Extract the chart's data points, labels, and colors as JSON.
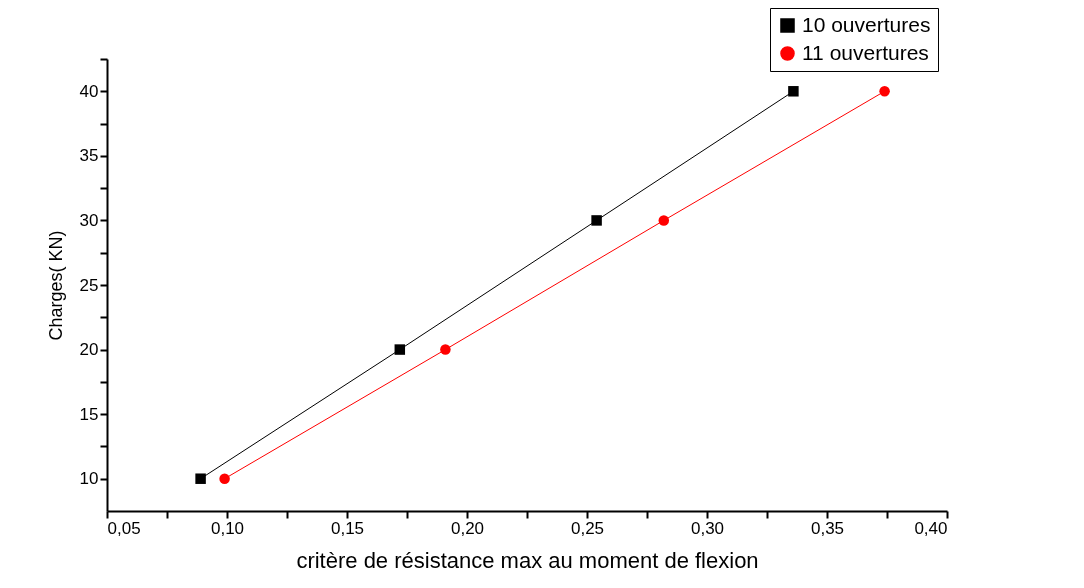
{
  "chart_data": {
    "type": "line",
    "xlabel": "critère de résistance max au moment de flexion",
    "ylabel": "Charges( KN)",
    "series": [
      {
        "name": "10 ouvertures",
        "color": "#000000",
        "marker": "square",
        "x": [
          0.089,
          0.172,
          0.254,
          0.336
        ],
        "values": [
          10,
          20,
          30,
          40
        ]
      },
      {
        "name": "11 ouvertures",
        "color": "#ff0000",
        "marker": "circle",
        "x": [
          0.099,
          0.191,
          0.282,
          0.374
        ],
        "values": [
          10,
          20,
          30,
          40
        ]
      }
    ],
    "xlim": [
      0.05,
      0.4
    ],
    "xticks": [
      {
        "value": 0.05,
        "label": "0,05"
      },
      {
        "value": 0.075,
        "label": null
      },
      {
        "value": 0.1,
        "label": "0,10"
      },
      {
        "value": 0.125,
        "label": null
      },
      {
        "value": 0.15,
        "label": "0,15"
      },
      {
        "value": 0.175,
        "label": null
      },
      {
        "value": 0.2,
        "label": "0,20"
      },
      {
        "value": 0.225,
        "label": null
      },
      {
        "value": 0.25,
        "label": "0,25"
      },
      {
        "value": 0.275,
        "label": null
      },
      {
        "value": 0.3,
        "label": "0,30"
      },
      {
        "value": 0.325,
        "label": null
      },
      {
        "value": 0.35,
        "label": "0,35"
      },
      {
        "value": 0.375,
        "label": null
      },
      {
        "value": 0.4,
        "label": "0,40"
      }
    ],
    "ylim": [
      7.5,
      42.5
    ],
    "yticks": [
      10,
      {
        "value": 12.5,
        "label": null
      },
      15,
      {
        "value": 17.5,
        "label": null
      },
      20,
      {
        "value": 22.5,
        "label": null
      },
      25,
      {
        "value": 27.5,
        "label": null
      },
      30,
      {
        "value": 32.5,
        "label": null
      },
      35,
      {
        "value": 37.5,
        "label": null
      },
      40,
      {
        "value": 42.5,
        "label": null
      }
    ],
    "grid": false,
    "legend": "top right",
    "line_style": "solid"
  }
}
